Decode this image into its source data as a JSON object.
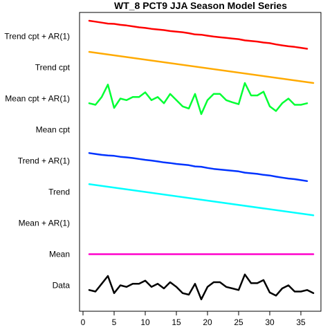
{
  "chart_data": {
    "type": "line",
    "title": "WT_8 PCT9 JJA Season Model Series",
    "xlabel": "",
    "ylabel": "",
    "xlim": [
      0,
      38
    ],
    "x_ticks": [
      0,
      5,
      10,
      15,
      20,
      25,
      30,
      35
    ],
    "categories": [
      "Data",
      "Mean",
      "Mean + AR(1)",
      "Trend",
      "Trend + AR(1)",
      "Mean cpt",
      "Mean cpt + AR(1)",
      "Trend cpt",
      "Trend cpt + AR(1)"
    ],
    "grid": false,
    "legend": "none",
    "series": [
      {
        "name": "Data",
        "color": "#000000",
        "x": [
          1,
          2,
          3,
          4,
          5,
          6,
          7,
          8,
          9,
          10,
          11,
          12,
          13,
          14,
          15,
          16,
          17,
          18,
          19,
          20,
          21,
          22,
          23,
          24,
          25,
          26,
          27,
          28,
          29,
          30,
          31,
          32,
          33,
          34,
          35,
          36,
          37
        ],
        "y": [
          -0.15,
          -0.2,
          0.05,
          0.3,
          -0.25,
          0.0,
          -0.05,
          0.05,
          0.05,
          0.15,
          -0.05,
          0.05,
          -0.1,
          0.1,
          -0.05,
          -0.25,
          -0.3,
          0.05,
          -0.45,
          -0.05,
          0.1,
          0.1,
          -0.05,
          -0.1,
          -0.15,
          0.35,
          0.07,
          0.07,
          0.17,
          -0.23,
          -0.33,
          -0.1,
          0.0,
          -0.2,
          -0.2,
          -0.15,
          -0.25
        ]
      },
      {
        "name": "Mean",
        "color": "#ff00cc",
        "x": [
          1,
          37
        ],
        "y": [
          1.0,
          1.0
        ]
      },
      {
        "name": "Trend",
        "color": "#00ffff",
        "x": [
          1,
          37
        ],
        "y": [
          3.25,
          2.25
        ]
      },
      {
        "name": "Trend + AR(1)",
        "color": "#0033ff",
        "x": [
          1,
          2,
          3,
          4,
          5,
          6,
          7,
          8,
          9,
          10,
          11,
          12,
          13,
          14,
          15,
          16,
          17,
          18,
          19,
          20,
          21,
          22,
          23,
          24,
          25,
          26,
          27,
          28,
          29,
          30,
          31,
          32,
          33,
          34,
          35,
          36
        ],
        "y": [
          4.25,
          4.22,
          4.19,
          4.17,
          4.16,
          4.13,
          4.11,
          4.09,
          4.06,
          4.03,
          4.01,
          3.98,
          3.95,
          3.93,
          3.9,
          3.88,
          3.86,
          3.82,
          3.81,
          3.77,
          3.74,
          3.72,
          3.7,
          3.68,
          3.66,
          3.62,
          3.6,
          3.58,
          3.55,
          3.53,
          3.49,
          3.46,
          3.43,
          3.41,
          3.38,
          3.35
        ]
      },
      {
        "name": "Mean cpt + AR(1)",
        "color": "#00ff33",
        "x": [
          1,
          2,
          3,
          4,
          5,
          6,
          7,
          8,
          9,
          10,
          11,
          12,
          13,
          14,
          15,
          16,
          17,
          18,
          19,
          20,
          21,
          22,
          23,
          24,
          25,
          26,
          27,
          28,
          29,
          30,
          31,
          32,
          33,
          34,
          35,
          36
        ],
        "y": [
          5.85,
          5.8,
          6.05,
          6.45,
          5.7,
          6.0,
          5.95,
          6.05,
          6.05,
          6.2,
          5.95,
          6.05,
          5.85,
          6.15,
          5.95,
          5.75,
          5.68,
          6.15,
          5.5,
          5.95,
          6.15,
          6.15,
          5.95,
          5.88,
          5.82,
          6.5,
          6.1,
          6.1,
          6.22,
          5.75,
          5.6,
          5.85,
          6.0,
          5.8,
          5.8,
          5.85
        ]
      },
      {
        "name": "Trend cpt",
        "color": "#ffaa00",
        "x": [
          1,
          37
        ],
        "y": [
          7.5,
          6.5
        ]
      },
      {
        "name": "Trend cpt + AR(1)",
        "color": "#ff0000",
        "x": [
          1,
          2,
          3,
          4,
          5,
          6,
          7,
          8,
          9,
          10,
          11,
          12,
          13,
          14,
          15,
          16,
          17,
          18,
          19,
          20,
          21,
          22,
          23,
          24,
          25,
          26,
          27,
          28,
          29,
          30,
          31,
          32,
          33,
          34,
          35,
          36
        ],
        "y": [
          8.5,
          8.47,
          8.44,
          8.41,
          8.4,
          8.37,
          8.35,
          8.32,
          8.29,
          8.27,
          8.24,
          8.22,
          8.2,
          8.17,
          8.15,
          8.13,
          8.1,
          8.06,
          8.05,
          8.02,
          7.99,
          7.97,
          7.95,
          7.93,
          7.91,
          7.87,
          7.85,
          7.83,
          7.8,
          7.78,
          7.74,
          7.71,
          7.68,
          7.66,
          7.63,
          7.6
        ]
      }
    ]
  }
}
